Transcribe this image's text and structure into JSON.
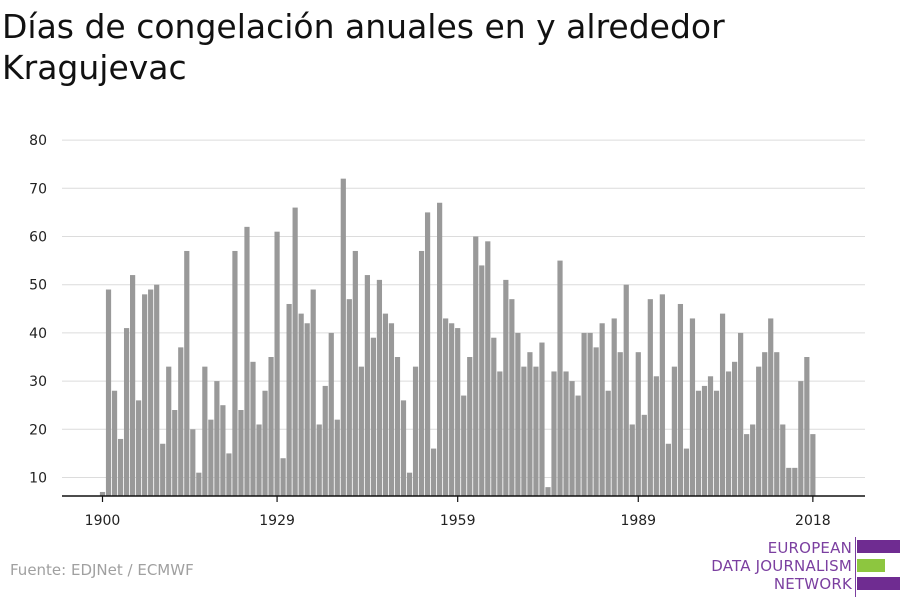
{
  "chart_data": {
    "type": "bar",
    "title": "Días de congelación anuales en y alrededor Kragujevac",
    "xlabel": "",
    "ylabel": "",
    "x_start": 1900,
    "x_end": 2019,
    "x_ticks": [
      1900,
      1929,
      1959,
      1989,
      2018
    ],
    "y_ticks": [
      10,
      20,
      30,
      40,
      50,
      60,
      70,
      80
    ],
    "ylim": [
      6,
      82
    ],
    "bar_color": "#999999",
    "grid": true,
    "values": [
      7,
      49,
      28,
      18,
      41,
      52,
      26,
      48,
      49,
      50,
      17,
      33,
      24,
      37,
      57,
      20,
      11,
      33,
      22,
      30,
      25,
      15,
      57,
      24,
      62,
      34,
      21,
      28,
      35,
      61,
      14,
      46,
      66,
      44,
      42,
      49,
      21,
      29,
      40,
      22,
      72,
      47,
      57,
      33,
      52,
      39,
      51,
      44,
      42,
      35,
      26,
      11,
      33,
      57,
      65,
      16,
      67,
      43,
      42,
      41,
      27,
      35,
      60,
      54,
      59,
      39,
      32,
      51,
      47,
      40,
      33,
      36,
      33,
      38,
      8,
      32,
      55,
      32,
      30,
      27,
      40,
      40,
      37,
      42,
      28,
      43,
      36,
      50,
      21,
      36,
      23,
      47,
      31,
      48,
      17,
      33,
      46,
      16,
      43,
      28,
      29,
      31,
      28,
      44,
      32,
      34,
      40,
      19,
      21,
      33,
      36,
      43,
      36,
      21,
      12,
      12,
      30,
      35,
      19
    ]
  },
  "source_text": "Fuente: EDJNet / ECMWF",
  "logo": {
    "line1": "EUROPEAN",
    "line2": "DATA JOURNALISM",
    "line3": "NETWORK",
    "purple": "#6f2c91",
    "green": "#8dc63f"
  }
}
